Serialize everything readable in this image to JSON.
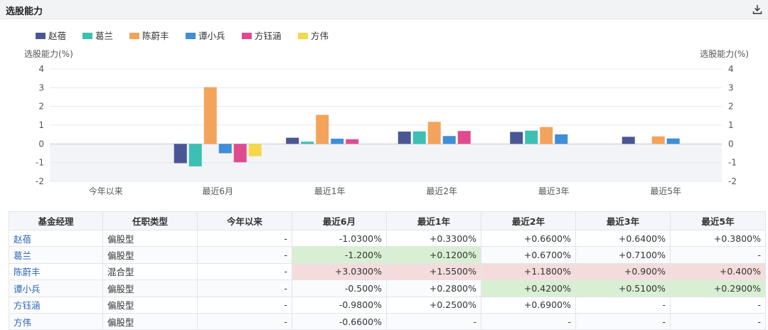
{
  "header": {
    "title": "选股能力",
    "download_icon": "download-icon"
  },
  "chart_data": {
    "type": "bar",
    "ylabel_left": "选股能力(%)",
    "ylabel_right": "选股能力(%)",
    "ylim": [
      -2,
      4
    ],
    "yticks": [
      -2,
      -1,
      0,
      1,
      2,
      3,
      4
    ],
    "categories": [
      "今年以来",
      "最近6月",
      "最近1年",
      "最近2年",
      "最近3年",
      "最近5年"
    ],
    "legend_position": "top-left",
    "series": [
      {
        "name": "赵蓓",
        "color": "#4a5694",
        "values": [
          null,
          -1.03,
          0.33,
          0.66,
          0.64,
          0.38
        ]
      },
      {
        "name": "葛兰",
        "color": "#3dbfb3",
        "values": [
          null,
          -1.2,
          0.12,
          0.67,
          0.71,
          null
        ]
      },
      {
        "name": "陈蔚丰",
        "color": "#f3a45a",
        "values": [
          null,
          3.03,
          1.55,
          1.18,
          0.9,
          0.4
        ]
      },
      {
        "name": "谭小兵",
        "color": "#3f8ed6",
        "values": [
          null,
          -0.5,
          0.28,
          0.42,
          0.51,
          0.29
        ]
      },
      {
        "name": "方钰涵",
        "color": "#e04b8f",
        "values": [
          null,
          -0.98,
          0.25,
          0.69,
          null,
          null
        ]
      },
      {
        "name": "方伟",
        "color": "#f3d84c",
        "values": [
          null,
          -0.66,
          null,
          null,
          null,
          null
        ]
      }
    ]
  },
  "table": {
    "headers": [
      "基金经理",
      "任职类型",
      "今年以来",
      "最近6月",
      "最近1年",
      "最近2年",
      "最近3年",
      "最近5年"
    ],
    "rows": [
      [
        "赵蓓",
        "偏股型",
        "-",
        "-1.0300%",
        "+0.3300%",
        "+0.6600%",
        "+0.6400%",
        "+0.3800%"
      ],
      [
        "葛兰",
        "偏股型",
        "-",
        "-1.200%",
        "+0.1200%",
        "+0.6700%",
        "+0.7100%",
        "-"
      ],
      [
        "陈蔚丰",
        "混合型",
        "-",
        "+3.0300%",
        "+1.5500%",
        "+1.1800%",
        "+0.900%",
        "+0.400%"
      ],
      [
        "谭小兵",
        "偏股型",
        "-",
        "-0.500%",
        "+0.2800%",
        "+0.4200%",
        "+0.5100%",
        "+0.2900%"
      ],
      [
        "方钰涵",
        "偏股型",
        "-",
        "-0.9800%",
        "+0.2500%",
        "+0.6900%",
        "-",
        "-"
      ],
      [
        "方伟",
        "偏股型",
        "-",
        "-0.6600%",
        "-",
        "-",
        "-",
        "-"
      ]
    ],
    "highlight_colors": {
      "green": "#d9efd4",
      "red": "#f5dcdc"
    },
    "highlights": [
      {
        "row": 1,
        "col": 3,
        "type": "green"
      },
      {
        "row": 1,
        "col": 4,
        "type": "green"
      },
      {
        "row": 2,
        "col": 3,
        "type": "red"
      },
      {
        "row": 2,
        "col": 4,
        "type": "red"
      },
      {
        "row": 2,
        "col": 5,
        "type": "red"
      },
      {
        "row": 2,
        "col": 6,
        "type": "red"
      },
      {
        "row": 2,
        "col": 7,
        "type": "red"
      },
      {
        "row": 3,
        "col": 5,
        "type": "green"
      },
      {
        "row": 3,
        "col": 6,
        "type": "green"
      },
      {
        "row": 3,
        "col": 7,
        "type": "green"
      }
    ]
  }
}
